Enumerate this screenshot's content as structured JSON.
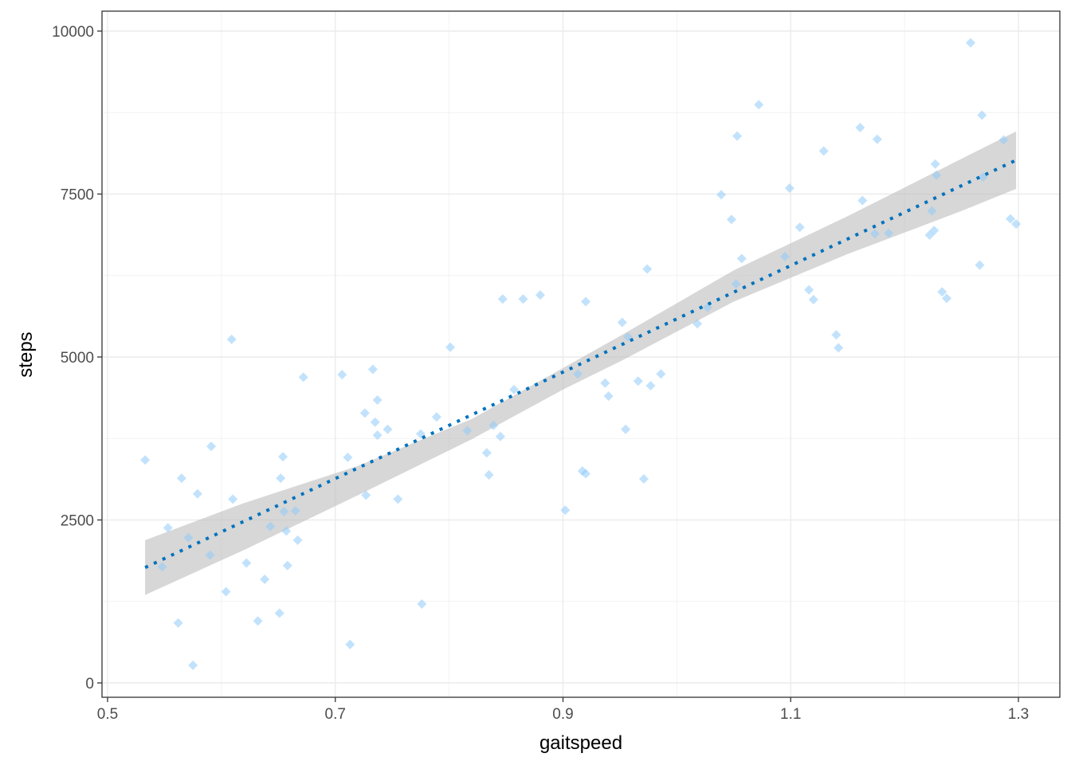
{
  "chart_data": {
    "type": "scatter",
    "xlabel": "gaitspeed",
    "ylabel": "steps",
    "xlim": [
      0.5,
      1.31
    ],
    "ylim": [
      -200,
      10300
    ],
    "x_ticks": [
      0.5,
      0.7,
      0.9,
      1.1,
      1.3
    ],
    "x_tick_labels": [
      "0.5",
      "0.7",
      "0.9",
      "1.1",
      "1.3"
    ],
    "y_ticks": [
      0,
      2500,
      5000,
      7500,
      10000
    ],
    "y_tick_labels": [
      "0",
      "2500",
      "5000",
      "7500",
      "10000"
    ],
    "grid": true,
    "point_color": "#90CAF9",
    "line_color": "#0072BD",
    "band_color": "#BEBEBE",
    "points": [
      [
        0.533,
        3420
      ],
      [
        0.548,
        1780
      ],
      [
        0.553,
        2380
      ],
      [
        0.562,
        920
      ],
      [
        0.565,
        3140
      ],
      [
        0.571,
        2230
      ],
      [
        0.575,
        270
      ],
      [
        0.579,
        2900
      ],
      [
        0.59,
        1960
      ],
      [
        0.591,
        3630
      ],
      [
        0.604,
        1400
      ],
      [
        0.609,
        5270
      ],
      [
        0.61,
        2820
      ],
      [
        0.622,
        1840
      ],
      [
        0.632,
        950
      ],
      [
        0.638,
        1590
      ],
      [
        0.643,
        2400
      ],
      [
        0.651,
        1070
      ],
      [
        0.652,
        3140
      ],
      [
        0.654,
        3470
      ],
      [
        0.655,
        2630
      ],
      [
        0.657,
        2330
      ],
      [
        0.658,
        1800
      ],
      [
        0.665,
        2640
      ],
      [
        0.667,
        2190
      ],
      [
        0.672,
        4690
      ],
      [
        0.706,
        4730
      ],
      [
        0.711,
        3460
      ],
      [
        0.713,
        590
      ],
      [
        0.726,
        4140
      ],
      [
        0.727,
        2880
      ],
      [
        0.733,
        4810
      ],
      [
        0.735,
        4000
      ],
      [
        0.737,
        3800
      ],
      [
        0.737,
        4340
      ],
      [
        0.746,
        3890
      ],
      [
        0.755,
        2820
      ],
      [
        0.775,
        3820
      ],
      [
        0.776,
        1210
      ],
      [
        0.789,
        4080
      ],
      [
        0.801,
        5150
      ],
      [
        0.816,
        3870
      ],
      [
        0.833,
        3530
      ],
      [
        0.835,
        3190
      ],
      [
        0.839,
        3950
      ],
      [
        0.845,
        3780
      ],
      [
        0.847,
        5890
      ],
      [
        0.857,
        4500
      ],
      [
        0.865,
        5890
      ],
      [
        0.88,
        5950
      ],
      [
        0.902,
        2650
      ],
      [
        0.913,
        4740
      ],
      [
        0.917,
        3250
      ],
      [
        0.92,
        3210
      ],
      [
        0.92,
        5850
      ],
      [
        0.937,
        4600
      ],
      [
        0.94,
        4400
      ],
      [
        0.952,
        5530
      ],
      [
        0.955,
        3890
      ],
      [
        0.957,
        5310
      ],
      [
        0.966,
        4630
      ],
      [
        0.971,
        3130
      ],
      [
        0.974,
        6350
      ],
      [
        0.977,
        4560
      ],
      [
        0.986,
        4740
      ],
      [
        1.018,
        5510
      ],
      [
        1.027,
        5760
      ],
      [
        1.039,
        7490
      ],
      [
        1.048,
        7110
      ],
      [
        1.052,
        6120
      ],
      [
        1.053,
        8390
      ],
      [
        1.057,
        6510
      ],
      [
        1.072,
        8870
      ],
      [
        1.095,
        6540
      ],
      [
        1.099,
        7590
      ],
      [
        1.108,
        6990
      ],
      [
        1.116,
        6030
      ],
      [
        1.12,
        5880
      ],
      [
        1.129,
        8160
      ],
      [
        1.14,
        5340
      ],
      [
        1.142,
        5140
      ],
      [
        1.161,
        8520
      ],
      [
        1.163,
        7400
      ],
      [
        1.174,
        6890
      ],
      [
        1.176,
        8340
      ],
      [
        1.186,
        6900
      ],
      [
        1.222,
        6870
      ],
      [
        1.224,
        7240
      ],
      [
        1.226,
        6940
      ],
      [
        1.227,
        7960
      ],
      [
        1.228,
        7790
      ],
      [
        1.233,
        6000
      ],
      [
        1.237,
        5900
      ],
      [
        1.258,
        9820
      ],
      [
        1.266,
        6410
      ],
      [
        1.268,
        8710
      ],
      [
        1.269,
        7760
      ],
      [
        1.287,
        8330
      ],
      [
        1.293,
        7120
      ],
      [
        1.298,
        7040
      ]
    ],
    "fit_line": {
      "x": [
        0.533,
        1.298
      ],
      "y": [
        1770,
        8020
      ]
    },
    "conf_band": {
      "x": [
        0.533,
        0.62,
        0.72,
        0.82,
        0.9,
        0.95,
        1.05,
        1.15,
        1.25,
        1.298
      ],
      "upper": [
        2190,
        2760,
        3330,
        4050,
        4830,
        5320,
        6330,
        7160,
        8040,
        8460
      ],
      "lower": [
        1350,
        2040,
        2880,
        3740,
        4500,
        4930,
        5850,
        6580,
        7240,
        7580
      ]
    }
  }
}
